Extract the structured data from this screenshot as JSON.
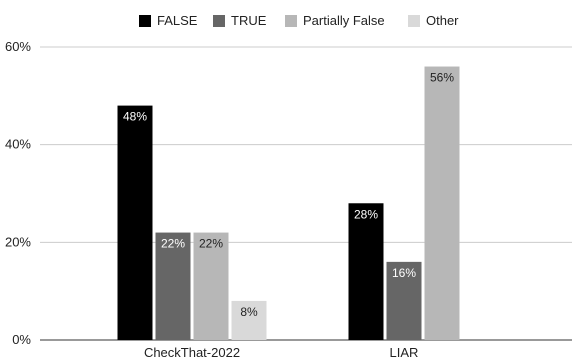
{
  "chart_data": {
    "type": "bar",
    "categories": [
      "CheckThat-2022",
      "LIAR"
    ],
    "series": [
      {
        "name": "FALSE",
        "color": "#000000",
        "label_color": "#ffffff",
        "values": [
          48,
          28
        ],
        "labels": [
          "48%",
          "28%"
        ]
      },
      {
        "name": "TRUE",
        "color": "#666666",
        "label_color": "#ffffff",
        "values": [
          22,
          16
        ],
        "labels": [
          "22%",
          "16%"
        ]
      },
      {
        "name": "Partially False",
        "color": "#b7b7b7",
        "label_color": "#222222",
        "values": [
          22,
          56
        ],
        "labels": [
          "22%",
          "56%"
        ]
      },
      {
        "name": "Other",
        "color": "#d9d9d9",
        "label_color": "#222222",
        "values": [
          8,
          null
        ],
        "labels": [
          "8%",
          ""
        ]
      }
    ],
    "y_ticks": [
      0,
      20,
      40,
      60
    ],
    "y_tick_labels": [
      "0%",
      "20%",
      "40%",
      "60%"
    ],
    "ylim": [
      0,
      60
    ],
    "grid": true,
    "legend_position": "top-center",
    "title": "",
    "xlabel": "",
    "ylabel": ""
  }
}
